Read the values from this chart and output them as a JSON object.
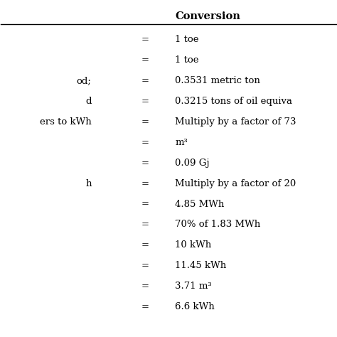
{
  "title": "Conversion",
  "rows": [
    [
      "",
      "=",
      "1 toe"
    ],
    [
      "",
      "=",
      "1 toe"
    ],
    [
      "od;",
      "=",
      "0.3531 metric ton"
    ],
    [
      "d",
      "=",
      "0.3215 tons of oil equiva"
    ],
    [
      "ers to kWh",
      "=",
      "Multiply by a factor of 73"
    ],
    [
      "",
      "=",
      "m³"
    ],
    [
      "",
      "=",
      "0.09 Gj"
    ],
    [
      "h",
      "=",
      "Multiply by a factor of 20"
    ],
    [
      "",
      "=",
      "4.85 MWh"
    ],
    [
      "",
      "=",
      "70% of 1.83 MWh"
    ],
    [
      "",
      "=",
      "10 kWh"
    ],
    [
      "",
      "=",
      "11.45 kWh"
    ],
    [
      "",
      "=",
      "3.71 m³"
    ],
    [
      "",
      "=",
      "6.6 kWh"
    ]
  ],
  "background_color": "#ffffff",
  "text_color": "#000000",
  "font_size": 9.5,
  "title_font_size": 10.5
}
